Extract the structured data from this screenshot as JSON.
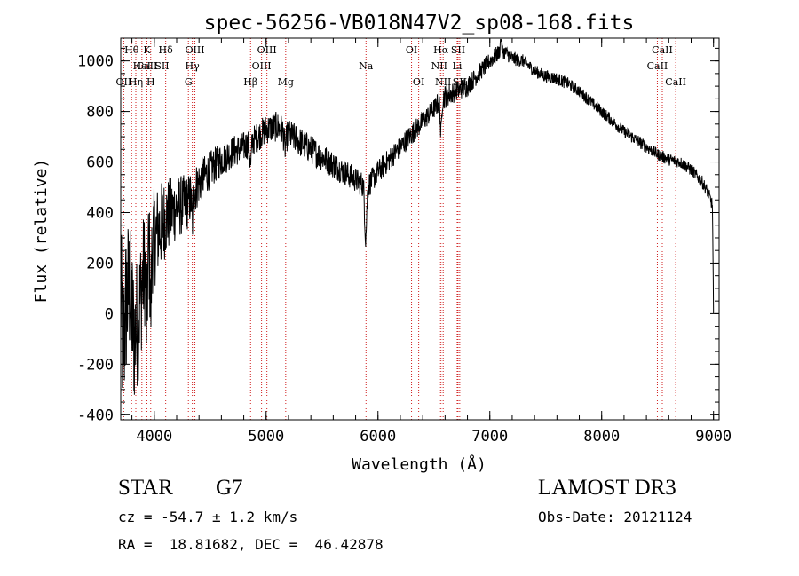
{
  "chart_data": {
    "type": "line",
    "title": "spec-56256-VB018N47V2_sp08-168.fits",
    "xlabel": "Wavelength (Å)",
    "ylabel": "Flux (relative)",
    "xlim": [
      3700,
      9050
    ],
    "ylim": [
      -420,
      1090
    ],
    "x_ticks": [
      4000,
      5000,
      6000,
      7000,
      8000,
      9000
    ],
    "x_tick_labels": [
      "4000",
      "5000",
      "6000",
      "7000",
      "8000",
      "9000"
    ],
    "y_ticks": [
      -400,
      -200,
      0,
      200,
      400,
      600,
      800,
      1000
    ],
    "y_tick_labels": [
      "-400",
      "-200",
      "0",
      "200",
      "400",
      "600",
      "800",
      "1000"
    ],
    "x_minor_step": 200,
    "y_minor_step": 50,
    "spectrum_anchors": {
      "x": [
        3700,
        3720,
        3750,
        3780,
        3820,
        3860,
        3900,
        3950,
        4000,
        4100,
        4200,
        4300,
        4400,
        4500,
        4600,
        4700,
        4800,
        4900,
        5000,
        5100,
        5200,
        5300,
        5400,
        5500,
        5600,
        5700,
        5800,
        5900,
        6000,
        6100,
        6200,
        6300,
        6400,
        6500,
        6550,
        6600,
        6700,
        6800,
        6900,
        7000,
        7050,
        7100,
        7150,
        7200,
        7300,
        7400,
        7500,
        7600,
        7700,
        7800,
        7900,
        8000,
        8100,
        8200,
        8300,
        8400,
        8500,
        8600,
        8700,
        8800,
        8900,
        8950,
        8990,
        9000
      ],
      "y": [
        100,
        -150,
        50,
        100,
        -100,
        0,
        150,
        250,
        300,
        380,
        420,
        440,
        520,
        570,
        610,
        640,
        660,
        690,
        730,
        740,
        710,
        680,
        650,
        620,
        590,
        560,
        530,
        500,
        560,
        610,
        660,
        710,
        760,
        810,
        840,
        860,
        880,
        900,
        950,
        1000,
        1020,
        1040,
        1030,
        1010,
        1000,
        960,
        940,
        930,
        910,
        880,
        840,
        800,
        760,
        720,
        690,
        660,
        630,
        610,
        600,
        570,
        520,
        480,
        430,
        0
      ],
      "noise": [
        300,
        320,
        320,
        300,
        280,
        260,
        240,
        220,
        200,
        160,
        130,
        110,
        90,
        75,
        70,
        65,
        60,
        60,
        60,
        60,
        60,
        60,
        58,
        56,
        54,
        52,
        50,
        50,
        48,
        46,
        45,
        44,
        42,
        40,
        45,
        48,
        40,
        40,
        36,
        34,
        34,
        30,
        30,
        28,
        26,
        25,
        25,
        25,
        25,
        24,
        24,
        24,
        24,
        24,
        24,
        24,
        24,
        24,
        24,
        25,
        25,
        25,
        25,
        25
      ]
    },
    "spectrum_features": [
      {
        "x": 5890,
        "width": 12,
        "depth": -200
      },
      {
        "x": 4861,
        "width": 10,
        "depth": -90
      },
      {
        "x": 4340,
        "width": 8,
        "depth": -110
      },
      {
        "x": 5170,
        "width": 14,
        "depth": -60
      },
      {
        "x": 6563,
        "width": 8,
        "depth": -140
      },
      {
        "x": 3933,
        "width": 8,
        "depth": -260
      },
      {
        "x": 3968,
        "width": 8,
        "depth": -260
      },
      {
        "x": 7100,
        "width": 8,
        "depth": 60
      }
    ],
    "lines": [
      {
        "label": "CaII",
        "x": 3934,
        "row": 1
      },
      {
        "label": "Hθ",
        "x": 3797,
        "row": 0
      },
      {
        "label": "Hη",
        "x": 3835,
        "row": 2
      },
      {
        "label": "OII",
        "x": 3727,
        "row": 2
      },
      {
        "label": "HeI",
        "x": 3889,
        "row": 1
      },
      {
        "label": "K",
        "x": 3934,
        "row": 0
      },
      {
        "label": "H",
        "x": 3968,
        "row": 2
      },
      {
        "label": "SII",
        "x": 4069,
        "row": 1
      },
      {
        "label": "Hδ",
        "x": 4102,
        "row": 0
      },
      {
        "label": "Hγ",
        "x": 4340,
        "row": 1
      },
      {
        "label": "OIII",
        "x": 4363,
        "row": 0
      },
      {
        "label": "G",
        "x": 4305,
        "row": 2
      },
      {
        "label": "Hβ",
        "x": 4861,
        "row": 2
      },
      {
        "label": "OIII",
        "x": 4959,
        "row": 1
      },
      {
        "label": "OIII",
        "x": 5007,
        "row": 0
      },
      {
        "label": "Mg",
        "x": 5175,
        "row": 2
      },
      {
        "label": "Na",
        "x": 5893,
        "row": 1
      },
      {
        "label": "OI",
        "x": 6300,
        "row": 0
      },
      {
        "label": "OI",
        "x": 6364,
        "row": 2
      },
      {
        "label": "NII",
        "x": 6548,
        "row": 1
      },
      {
        "label": "Hα",
        "x": 6563,
        "row": 0
      },
      {
        "label": "NII",
        "x": 6583,
        "row": 2
      },
      {
        "label": "SII",
        "x": 6716,
        "row": 0
      },
      {
        "label": "SII",
        "x": 6731,
        "row": 2
      },
      {
        "label": "Li",
        "x": 6708,
        "row": 1
      },
      {
        "label": "CaII",
        "x": 8498,
        "row": 1
      },
      {
        "label": "CaII",
        "x": 8542,
        "row": 0
      },
      {
        "label": "CaII",
        "x": 8662,
        "row": 2
      }
    ]
  },
  "info": {
    "object_class": "STAR",
    "subclass": "G7",
    "survey": "LAMOST DR3",
    "cz_text": "cz = -54.7 ± 1.2 km/s",
    "obs_text": "Obs-Date: 20121124",
    "radec_text": "RA =  18.81682, DEC =  46.42878"
  }
}
